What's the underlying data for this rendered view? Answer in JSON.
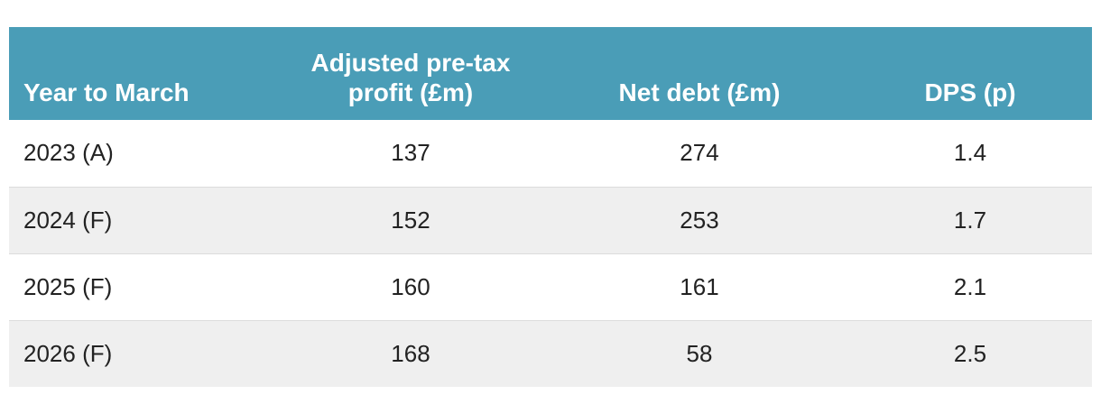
{
  "table": {
    "headers": [
      "Year to March",
      "Adjusted pre-tax profit (£m)",
      "Net debt (£m)",
      "DPS (p)"
    ],
    "rows": [
      [
        "2023 (A)",
        "137",
        "274",
        "1.4"
      ],
      [
        "2024 (F)",
        "152",
        "253",
        "1.7"
      ],
      [
        "2025 (F)",
        "160",
        "161",
        "2.1"
      ],
      [
        "2026 (F)",
        "168",
        "58",
        "2.5"
      ]
    ]
  },
  "colors": {
    "header_bg": "#4a9db7",
    "header_text": "#ffffff",
    "row_alt_bg": "#efefef"
  }
}
